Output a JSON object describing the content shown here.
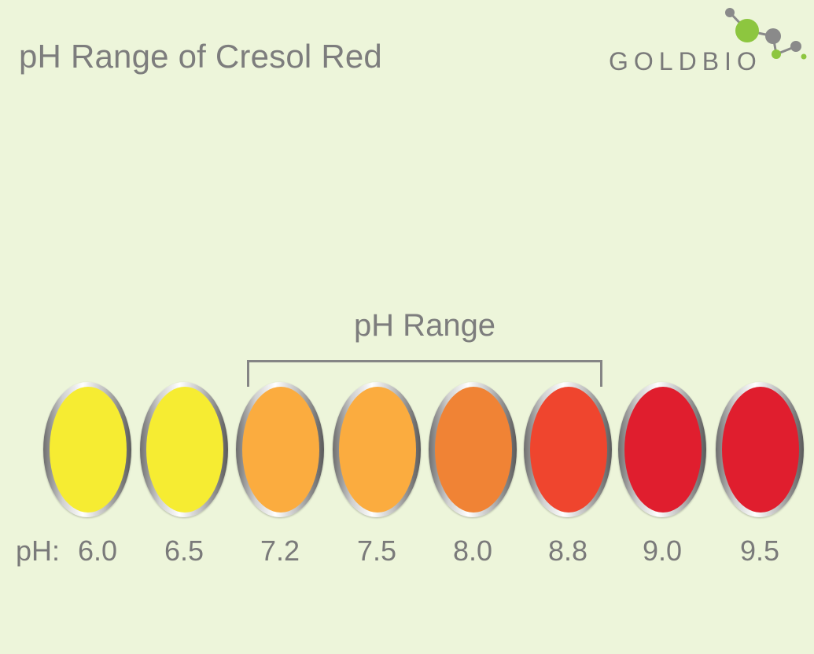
{
  "title": "pH Range of Cresol Red",
  "logo": {
    "text": "GOLDBIO",
    "brand_green": "#8dc63f",
    "brand_gray": "#8a8a8a"
  },
  "range_label": "pH Range",
  "ph_prefix": "pH:",
  "samples": [
    {
      "ph": "6.0",
      "color": "#f6ec32"
    },
    {
      "ph": "6.5",
      "color": "#f6ec32"
    },
    {
      "ph": "7.2",
      "color": "#fbac3f"
    },
    {
      "ph": "7.5",
      "color": "#fbac3f"
    },
    {
      "ph": "8.0",
      "color": "#f08335"
    },
    {
      "ph": "8.8",
      "color": "#ef452e"
    },
    {
      "ph": "9.0",
      "color": "#e01e2e"
    },
    {
      "ph": "9.5",
      "color": "#e01e2e"
    }
  ]
}
